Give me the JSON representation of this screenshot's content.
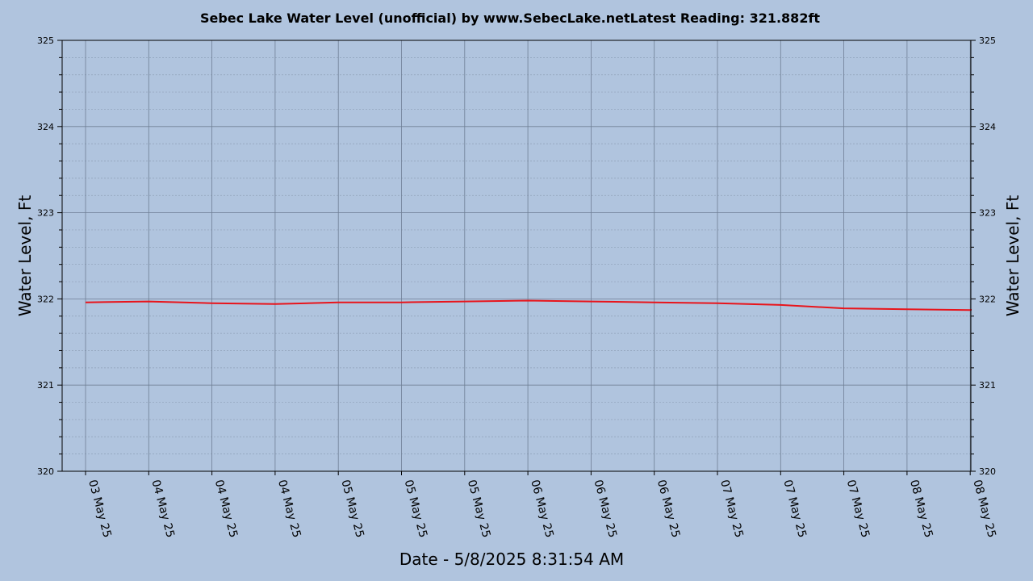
{
  "chart_data": {
    "type": "line",
    "title": "Sebec Lake Water Level (unofficial) by www.SebecLake.netLatest Reading: 321.882ft",
    "xlabel": "Date - 5/8/2025 8:31:54 AM",
    "ylabel_left": "Water Level, Ft",
    "ylabel_right": "Water Level, Ft",
    "ylim": [
      320,
      325
    ],
    "y_ticks": [
      "320",
      "321",
      "322",
      "323",
      "324",
      "325"
    ],
    "x_tick_labels": [
      "03 May 25",
      "04 May 25",
      "04 May 25",
      "04 May 25",
      "05 May 25",
      "05 May 25",
      "05 May 25",
      "06 May 25",
      "06 May 25",
      "06 May 25",
      "07 May 25",
      "07 May 25",
      "07 May 25",
      "08 May 25",
      "08 May 25"
    ],
    "grid": true,
    "series": [
      {
        "color": "#e8141b",
        "x": [
          "2025-05-03 00:00",
          "2025-05-03 08:00",
          "2025-05-03 16:00",
          "2025-05-04 00:00",
          "2025-05-04 08:00",
          "2025-05-04 16:00",
          "2025-05-05 00:00",
          "2025-05-05 08:00",
          "2025-05-05 16:00",
          "2025-05-06 00:00",
          "2025-05-06 08:00",
          "2025-05-06 16:00",
          "2025-05-07 00:00",
          "2025-05-07 08:00",
          "2025-05-07 16:00",
          "2025-05-08 00:00",
          "2025-05-08 08:30"
        ],
        "values": [
          321.96,
          321.97,
          321.95,
          321.94,
          321.96,
          321.96,
          321.97,
          321.98,
          321.97,
          321.96,
          321.95,
          321.93,
          321.89,
          321.88,
          321.87,
          321.87,
          321.882
        ]
      }
    ],
    "colors": {
      "background": "#b0c4de",
      "plot_area": "#b0c4de",
      "line": "#e8141b",
      "major_grid": "#6f7f95",
      "minor_grid": "#8ea0b8"
    }
  }
}
